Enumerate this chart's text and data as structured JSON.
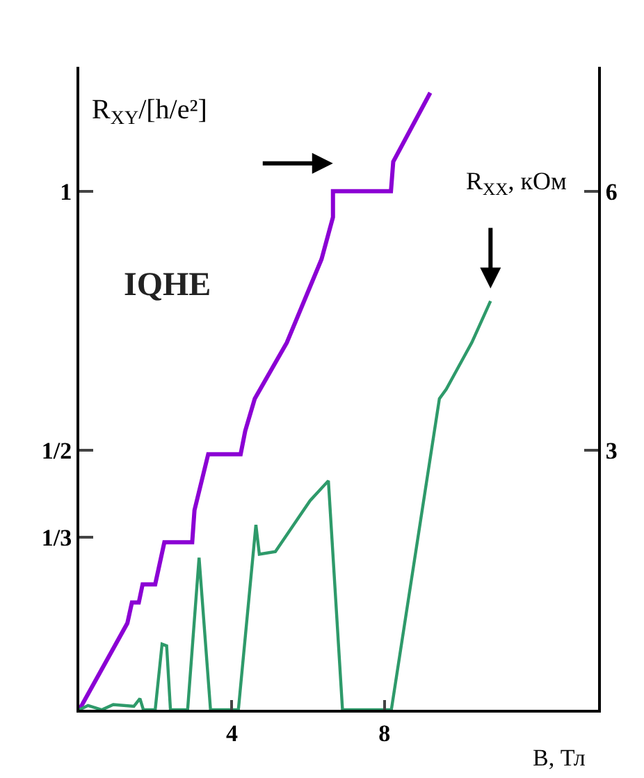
{
  "chart_data": {
    "type": "line",
    "xlabel": "B, Тл",
    "ylabel": "R$_{XY}$/[h/e²]",
    "y2label": "R$_{XX}$, кОм",
    "annotations": [
      "IQHE"
    ],
    "xlim": [
      0,
      13.6
    ],
    "xticks": [
      4,
      8
    ],
    "ylim": [
      0,
      1.24
    ],
    "yticks": [
      {
        "value": 0.3333,
        "label": "1/3"
      },
      {
        "value": 0.5,
        "label": "1/2"
      },
      {
        "value": 1,
        "label": "1"
      }
    ],
    "y2lim": [
      0,
      7.44
    ],
    "y2ticks": [
      3,
      6
    ],
    "marker": "none",
    "line_style": "solid",
    "series": [
      {
        "color": "#8b00d4",
        "x": [
          0,
          1.26,
          1.38,
          1.56,
          1.66,
          1.99,
          2.23,
          2.96,
          3.02,
          3.38,
          4.23,
          4.35,
          4.6,
          5.44,
          6.35,
          6.65,
          6.65,
          8.17,
          8.23,
          9.2
        ],
        "values": [
          0,
          0.167,
          0.207,
          0.207,
          0.242,
          0.242,
          0.323,
          0.323,
          0.385,
          0.493,
          0.493,
          0.538,
          0.6,
          0.708,
          0.869,
          0.95,
          1.0,
          1.0,
          1.057,
          1.19
        ]
      },
      {
        "color": "#2e9a6a",
        "axis": "y2",
        "x": [
          0,
          0.23,
          0.59,
          0.89,
          1.43,
          1.59,
          1.68,
          1.99,
          2.17,
          2.29,
          2.39,
          2.84,
          3.14,
          3.44,
          4.17,
          4.63,
          4.72,
          5.14,
          6.05,
          6.53,
          6.9,
          8.18,
          9.44,
          9.62,
          10.29,
          10.78
        ],
        "values": [
          0,
          0.05,
          0,
          0.06,
          0.04,
          0.13,
          0,
          0,
          0.76,
          0.74,
          0,
          0,
          1.76,
          0,
          0,
          2.14,
          1.8,
          1.83,
          2.42,
          2.65,
          0,
          0,
          3.6,
          3.71,
          4.25,
          4.73
        ]
      }
    ]
  }
}
